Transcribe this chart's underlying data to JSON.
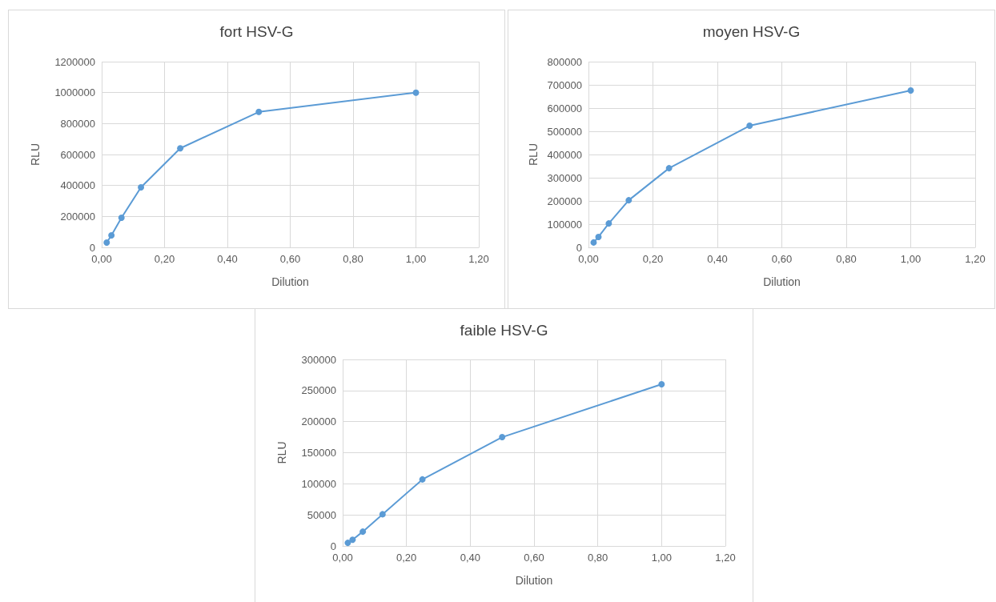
{
  "chart_data": [
    {
      "type": "line",
      "title": "fort HSV-G",
      "xlabel": "Dilution",
      "ylabel": "RLU",
      "x": [
        0.016,
        0.031,
        0.063,
        0.125,
        0.25,
        0.5,
        1
      ],
      "series": [
        {
          "color": "#5b9bd5",
          "values": [
            31000,
            78000,
            191000,
            388000,
            640000,
            875000,
            1000000
          ]
        }
      ],
      "xlim": [
        0,
        1.2
      ],
      "xticks": [
        {
          "value": 0,
          "label": "0,00"
        },
        {
          "value": 0.2,
          "label": "0,20"
        },
        {
          "value": 0.4,
          "label": "0,40"
        },
        {
          "value": 0.6,
          "label": "0,60"
        },
        {
          "value": 0.8,
          "label": "0,80"
        },
        {
          "value": 1,
          "label": "1,00"
        },
        {
          "value": 1.2,
          "label": "1,20"
        }
      ],
      "ylim": [
        0,
        1200000
      ],
      "yticks": [
        0,
        200000,
        400000,
        600000,
        800000,
        1000000,
        1200000
      ],
      "grid": true,
      "marker": "circle",
      "line_style": "solid"
    },
    {
      "type": "line",
      "title": "moyen HSV-G",
      "xlabel": "Dilution",
      "ylabel": "RLU",
      "x": [
        0.016,
        0.031,
        0.063,
        0.125,
        0.25,
        0.5,
        1
      ],
      "series": [
        {
          "color": "#5b9bd5",
          "values": [
            21000,
            45000,
            103000,
            203000,
            341000,
            524000,
            676000
          ]
        }
      ],
      "xlim": [
        0,
        1.2
      ],
      "xticks": [
        {
          "value": 0,
          "label": "0,00"
        },
        {
          "value": 0.2,
          "label": "0,20"
        },
        {
          "value": 0.4,
          "label": "0,40"
        },
        {
          "value": 0.6,
          "label": "0,60"
        },
        {
          "value": 0.8,
          "label": "0,80"
        },
        {
          "value": 1,
          "label": "1,00"
        },
        {
          "value": 1.2,
          "label": "1,20"
        }
      ],
      "ylim": [
        0,
        800000
      ],
      "yticks": [
        0,
        100000,
        200000,
        300000,
        400000,
        500000,
        600000,
        700000,
        800000
      ],
      "grid": true,
      "marker": "circle",
      "line_style": "solid"
    },
    {
      "type": "line",
      "title": "faible HSV-G",
      "xlabel": "Dilution",
      "ylabel": "RLU",
      "x": [
        0.016,
        0.031,
        0.063,
        0.125,
        0.25,
        0.5,
        1
      ],
      "series": [
        {
          "color": "#5b9bd5",
          "values": [
            5000,
            10000,
            23000,
            51000,
            107000,
            175000,
            260000
          ]
        }
      ],
      "xlim": [
        0,
        1.2
      ],
      "xticks": [
        {
          "value": 0,
          "label": "0,00"
        },
        {
          "value": 0.2,
          "label": "0,20"
        },
        {
          "value": 0.4,
          "label": "0,40"
        },
        {
          "value": 0.6,
          "label": "0,60"
        },
        {
          "value": 0.8,
          "label": "0,80"
        },
        {
          "value": 1,
          "label": "1,00"
        },
        {
          "value": 1.2,
          "label": "1,20"
        }
      ],
      "ylim": [
        0,
        300000
      ],
      "yticks": [
        0,
        50000,
        100000,
        150000,
        200000,
        250000,
        300000
      ],
      "grid": true,
      "marker": "circle",
      "line_style": "solid"
    }
  ]
}
